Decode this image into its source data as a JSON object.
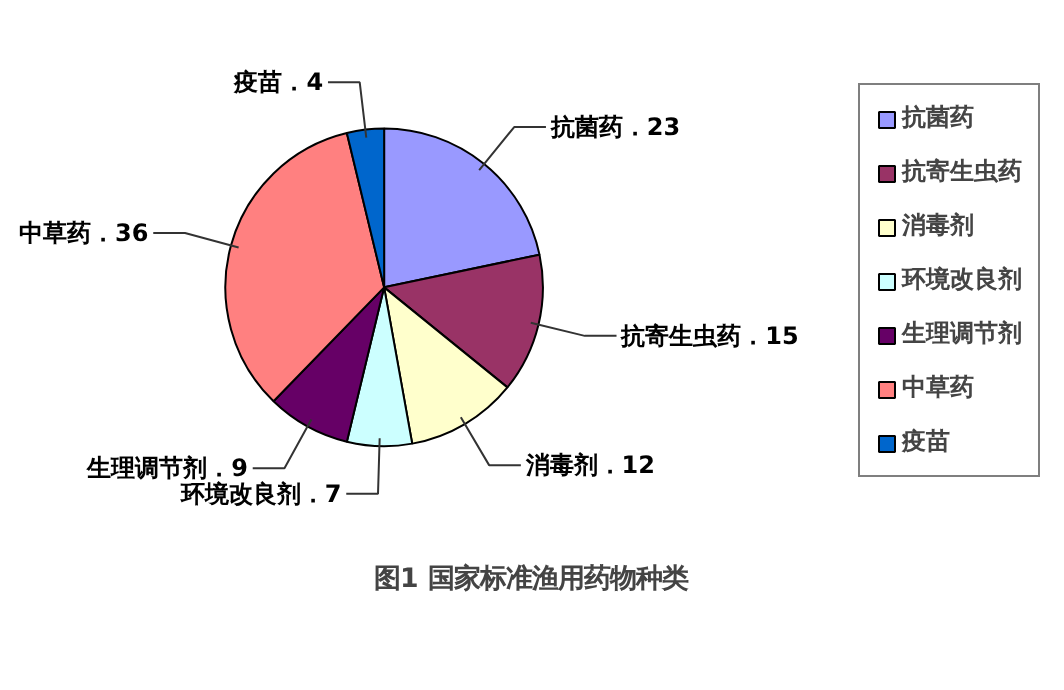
{
  "chart_data": {
    "type": "pie",
    "title": "图1 国家标准渔用药物种类",
    "categories": [
      "抗菌药",
      "抗寄生虫药",
      "消毒剂",
      "环境改良剂",
      "生理调节剂",
      "中草药",
      "疫苗"
    ],
    "values": [
      23,
      15,
      12,
      7,
      9,
      36,
      4
    ],
    "colors": [
      "#9999ff",
      "#993366",
      "#ffffcc",
      "#ccffff",
      "#660066",
      "#ff8080",
      "#0066cc"
    ],
    "value_labels": [
      "抗菌药．23",
      "抗寄生虫药．15",
      "消毒剂．12",
      "环境改良剂．7",
      "生理调节剂．9",
      "中草药．36",
      "疫苗．4"
    ],
    "legend": "right"
  }
}
